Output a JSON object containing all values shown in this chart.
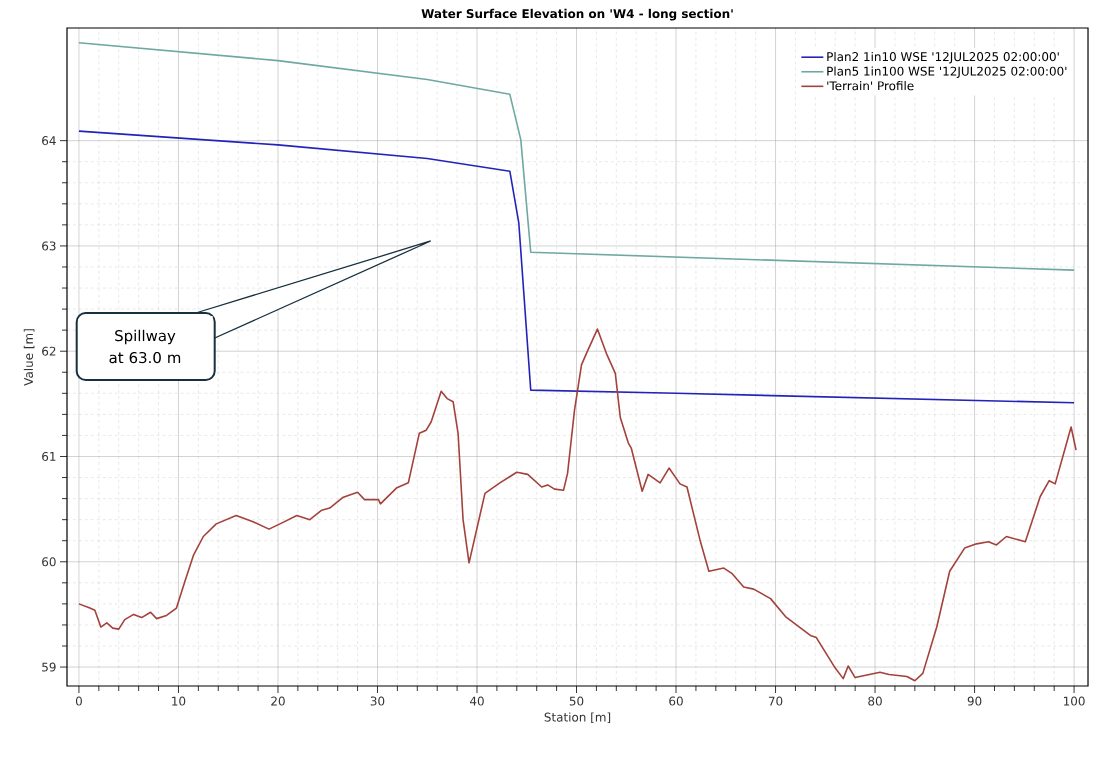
{
  "chart_data": {
    "type": "line",
    "title": "Water Surface Elevation on 'W4 - long section'",
    "xlabel": "Station [m]",
    "ylabel": "Value [m]",
    "xlim": [
      -1.2,
      101.4
    ],
    "ylim": [
      58.82,
      65.07
    ],
    "xticks": [
      0,
      10,
      20,
      30,
      40,
      50,
      60,
      70,
      80,
      90,
      100
    ],
    "yticks": [
      59,
      60,
      61,
      62,
      63,
      64
    ],
    "grid": true,
    "legend": "top right",
    "marker": "none",
    "line_style": "solid",
    "series": [
      {
        "name": "Plan2 1in10 WSE '12JUL2025 02:00:00'",
        "color": "#2323b8",
        "x": [
          0,
          20,
          35,
          43.3,
          44.2,
          45.4,
          60,
          100
        ],
        "values": [
          64.09,
          63.96,
          63.83,
          63.71,
          63.22,
          61.63,
          61.6,
          61.51
        ]
      },
      {
        "name": "Plan5 1in100 WSE '12JUL2025 02:00:00'",
        "color": "#6fa8a2",
        "x": [
          0,
          20,
          35,
          43.3,
          44.4,
          45.4,
          100
        ],
        "values": [
          64.93,
          64.76,
          64.58,
          64.44,
          64.01,
          62.94,
          62.77
        ]
      },
      {
        "name": "'Terrain' Profile",
        "color": "#a3413b",
        "x": [
          0,
          1.1,
          1.6,
          2.2,
          2.8,
          3.4,
          4.0,
          4.6,
          5.5,
          6.3,
          7.2,
          7.8,
          8.8,
          9.8,
          10.7,
          11.5,
          12.5,
          13.8,
          15.8,
          17.5,
          19.1,
          20.2,
          21.9,
          23.2,
          24.4,
          25.2,
          26.5,
          28.0,
          28.7,
          30.1,
          30.3,
          31.9,
          33.1,
          34.2,
          34.9,
          35.4,
          36.4,
          37.0,
          37.6,
          38.1,
          38.6,
          39.2,
          40.8,
          42.3,
          44.0,
          45.1,
          46.5,
          47.1,
          47.8,
          48.7,
          49.1,
          49.8,
          50.5,
          51.0,
          52.1,
          53.0,
          53.9,
          54.4,
          55.2,
          55.5,
          56.6,
          57.2,
          58.4,
          59.3,
          60.4,
          61.1,
          62.4,
          63.3,
          64.8,
          65.6,
          66.8,
          67.8,
          69.5,
          71.0,
          73.5,
          74.1,
          76.0,
          76.8,
          77.3,
          78.0,
          80.5,
          81.4,
          83.2,
          84.0,
          84.8,
          86.2,
          87.5,
          89.0,
          90.2,
          91.4,
          92.2,
          93.2,
          95.1,
          96.6,
          97.5,
          98.1,
          99.7,
          100.2
        ],
        "values": [
          59.6,
          59.56,
          59.54,
          59.38,
          59.42,
          59.37,
          59.36,
          59.45,
          59.5,
          59.47,
          59.52,
          59.46,
          59.49,
          59.56,
          59.83,
          60.06,
          60.24,
          60.36,
          60.44,
          60.38,
          60.31,
          60.36,
          60.44,
          60.4,
          60.49,
          60.51,
          60.61,
          60.66,
          60.59,
          60.59,
          60.55,
          60.7,
          60.75,
          61.22,
          61.25,
          61.33,
          61.62,
          61.55,
          61.52,
          61.22,
          60.4,
          59.99,
          60.65,
          60.75,
          60.85,
          60.83,
          60.71,
          60.73,
          60.69,
          60.68,
          60.84,
          61.44,
          61.87,
          61.98,
          62.21,
          61.98,
          61.79,
          61.37,
          61.13,
          61.08,
          60.67,
          60.83,
          60.75,
          60.89,
          60.74,
          60.71,
          60.21,
          59.91,
          59.94,
          59.89,
          59.76,
          59.74,
          59.65,
          59.48,
          59.3,
          59.28,
          58.99,
          58.89,
          59.01,
          58.9,
          58.95,
          58.93,
          58.91,
          58.87,
          58.94,
          59.38,
          59.91,
          60.13,
          60.17,
          60.19,
          60.16,
          60.24,
          60.19,
          60.62,
          60.77,
          60.74,
          61.28,
          61.06
        ]
      }
    ],
    "annotations": [
      "Spillway at 63.0 m"
    ]
  }
}
